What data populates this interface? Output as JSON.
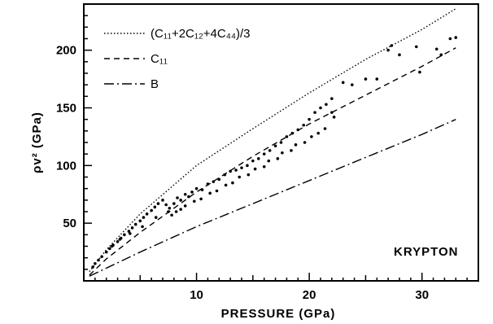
{
  "chart_data": {
    "type": "line",
    "title": "",
    "xlabel": "PRESSURE (GPa)",
    "ylabel": "ρv² (GPa)",
    "xlim": [
      0,
      35
    ],
    "ylim": [
      0,
      240
    ],
    "xticks": [
      10,
      20,
      30
    ],
    "yticks": [
      50,
      100,
      150,
      200
    ],
    "grid": false,
    "legend": "top-left",
    "annotation": "KRYPTON",
    "series": [
      {
        "name": "(C₁₁+2C₁₂+4C₄₄)/3",
        "style": "dotted",
        "x": [
          0.5,
          2,
          5,
          10,
          15,
          20,
          25,
          30,
          33
        ],
        "y": [
          8,
          27,
          58,
          100,
          132,
          163,
          192,
          218,
          236
        ]
      },
      {
        "name": "C₁₁",
        "style": "dashed",
        "x": [
          0.5,
          2,
          5,
          10,
          15,
          20,
          25,
          30,
          33
        ],
        "y": [
          5,
          19,
          42,
          77,
          108,
          136,
          161,
          186,
          202
        ]
      },
      {
        "name": "B",
        "style": "dashdot",
        "x": [
          0.5,
          2,
          5,
          10,
          15,
          20,
          25,
          30,
          33
        ],
        "y": [
          4,
          11,
          25,
          47,
          67,
          87,
          107,
          127,
          140
        ]
      },
      {
        "name": "",
        "style": "points",
        "x": [
          0.8,
          1.0,
          1.3,
          1.6,
          2.0,
          2.3,
          2.6,
          3.0,
          3.3,
          3.6,
          4.0,
          4.3,
          4.6,
          5.0,
          5.3,
          5.6,
          6.0,
          6.3,
          6.6,
          7.0,
          7.3,
          7.6,
          8.0,
          8.3,
          8.6,
          9.0,
          9.3,
          9.6,
          10.0,
          10.5,
          11.0,
          11.5,
          12.0,
          12.5,
          13.0,
          13.5,
          14.0,
          14.5,
          15.0,
          15.5,
          16.0,
          16.5,
          17.0,
          17.5,
          18.0,
          18.5,
          19.0,
          19.5,
          20.0,
          20.5,
          21.0,
          21.5,
          22.0,
          2.5,
          3.2,
          4.1,
          5.2,
          6.4,
          7.5,
          8.6,
          9.8,
          11.2,
          12.6,
          13.8,
          15.2,
          16.4,
          17.6,
          18.8,
          20.2,
          21.4,
          22.2,
          23.0,
          23.8,
          25.0,
          26.0,
          27.0,
          27.3,
          28.0,
          29.5,
          31.3,
          31.7,
          32.5,
          33.0,
          7.8,
          8.2,
          9.0,
          10.4,
          11.8,
          13.2,
          14.6,
          16.0,
          17.2,
          18.4,
          19.6,
          20.8,
          22.0,
          29.8
        ],
        "y": [
          12,
          15,
          18,
          21,
          25,
          28,
          31,
          34,
          37,
          40,
          43,
          46,
          49,
          52,
          55,
          58,
          61,
          64,
          67,
          70,
          66,
          63,
          67,
          72,
          70,
          75,
          73,
          77,
          80,
          79,
          84,
          86,
          88,
          92,
          95,
          96,
          98,
          100,
          104,
          106,
          110,
          113,
          117,
          120,
          125,
          128,
          131,
          135,
          140,
          146,
          150,
          153,
          158,
          30,
          36,
          41,
          47,
          55,
          60,
          62,
          69,
          76,
          83,
          90,
          97,
          104,
          111,
          118,
          125,
          132,
          142,
          172,
          170,
          175,
          175,
          200,
          204,
          196,
          203,
          201,
          196,
          210,
          211,
          57,
          60,
          65,
          71,
          78,
          85,
          92,
          99,
          106,
          113,
          120,
          128,
          146,
          181
        ]
      }
    ]
  }
}
